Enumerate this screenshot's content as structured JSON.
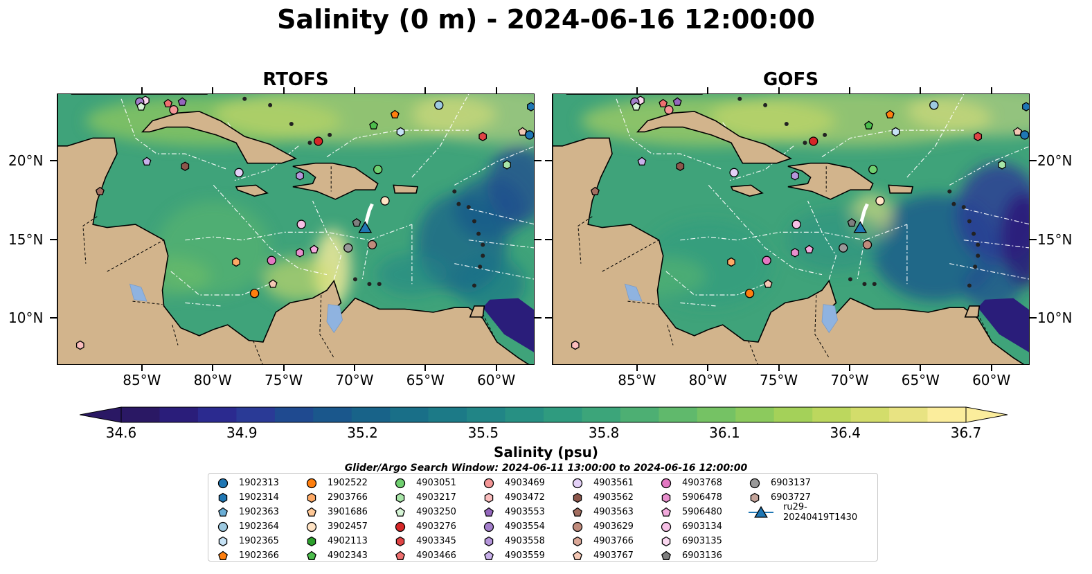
{
  "title": "Salinity (0 m) - 2024-06-16 12:00:00",
  "panels": [
    {
      "title": "RTOFS"
    },
    {
      "title": "GOFS"
    }
  ],
  "map": {
    "lon_range": [
      -91,
      -57.3
    ],
    "lat_range": [
      7.0,
      24.3
    ],
    "lon_ticks": [
      {
        "value": -85,
        "label": "85°W"
      },
      {
        "value": -80,
        "label": "80°W"
      },
      {
        "value": -75,
        "label": "75°W"
      },
      {
        "value": -70,
        "label": "70°W"
      },
      {
        "value": -65,
        "label": "65°W"
      },
      {
        "value": -60,
        "label": "60°W"
      }
    ],
    "lat_ticks": [
      {
        "value": 20,
        "label": "20°N"
      },
      {
        "value": 15,
        "label": "15°N"
      },
      {
        "value": 10,
        "label": "10°N"
      }
    ],
    "colors": {
      "land": "#d2b48c",
      "ocean_base": "#3fa37a",
      "bathy_lines": "#ffffff",
      "lakes": "#8fb3e0"
    }
  },
  "colorbar": {
    "label": "Salinity (psu)",
    "ticks": [
      "34.6",
      "34.9",
      "35.2",
      "35.5",
      "35.8",
      "36.1",
      "36.4",
      "36.7"
    ],
    "range": [
      34.6,
      36.7
    ],
    "colormap": "haline",
    "extend": "both",
    "colors": [
      "#2a1864",
      "#2a1d7a",
      "#2b2a8f",
      "#2a3a96",
      "#1f4a90",
      "#1a578c",
      "#186389",
      "#196f88",
      "#1c7a87",
      "#218586",
      "#279083",
      "#2f9b7f",
      "#3ca57a",
      "#4daf73",
      "#60b96c",
      "#75c264",
      "#8cca5d",
      "#a4d159",
      "#bcd75e",
      "#d3dd6b",
      "#e8e382",
      "#fbed9c"
    ]
  },
  "search_window": "Glider/Argo Search Window: 2024-06-11 13:00:00 to 2024-06-16 12:00:00",
  "legend": [
    {
      "label": "1902313",
      "marker": "circle",
      "color": "#1f77b4"
    },
    {
      "label": "1902314",
      "marker": "hexagon",
      "color": "#1f77b4"
    },
    {
      "label": "1902363",
      "marker": "pentagon",
      "color": "#6aaed6"
    },
    {
      "label": "1902364",
      "marker": "circle",
      "color": "#9ecae1"
    },
    {
      "label": "1902365",
      "marker": "hexagon",
      "color": "#c6e2f5"
    },
    {
      "label": "1902366",
      "marker": "pentagon",
      "color": "#ff7f0e"
    },
    {
      "label": "1902522",
      "marker": "circle",
      "color": "#ff7f0e"
    },
    {
      "label": "2903766",
      "marker": "hexagon",
      "color": "#ffaa66"
    },
    {
      "label": "3901686",
      "marker": "pentagon",
      "color": "#ffc896"
    },
    {
      "label": "3902457",
      "marker": "circle",
      "color": "#ffe3c4"
    },
    {
      "label": "4902113",
      "marker": "hexagon",
      "color": "#2ca02c"
    },
    {
      "label": "4902343",
      "marker": "pentagon",
      "color": "#4cbd4c"
    },
    {
      "label": "4903051",
      "marker": "circle",
      "color": "#6fcf6f"
    },
    {
      "label": "4903217",
      "marker": "hexagon",
      "color": "#a8e6a8"
    },
    {
      "label": "4903250",
      "marker": "pentagon",
      "color": "#d6f5d6"
    },
    {
      "label": "4903276",
      "marker": "circle",
      "color": "#d62728"
    },
    {
      "label": "4903345",
      "marker": "hexagon",
      "color": "#e04445"
    },
    {
      "label": "4903466",
      "marker": "pentagon",
      "color": "#ee6f6f"
    },
    {
      "label": "4903469",
      "marker": "circle",
      "color": "#f49696"
    },
    {
      "label": "4903472",
      "marker": "hexagon",
      "color": "#fbbdbd"
    },
    {
      "label": "4903553",
      "marker": "pentagon",
      "color": "#9467bd"
    },
    {
      "label": "4903554",
      "marker": "circle",
      "color": "#a47fcc"
    },
    {
      "label": "4903558",
      "marker": "hexagon",
      "color": "#b596db"
    },
    {
      "label": "4903559",
      "marker": "pentagon",
      "color": "#c8b0ea"
    },
    {
      "label": "4903561",
      "marker": "circle",
      "color": "#e3d0f7"
    },
    {
      "label": "4903562",
      "marker": "hexagon",
      "color": "#8c564b"
    },
    {
      "label": "4903563",
      "marker": "pentagon",
      "color": "#a36e60"
    },
    {
      "label": "4903629",
      "marker": "circle",
      "color": "#c08b7c"
    },
    {
      "label": "4903766",
      "marker": "hexagon",
      "color": "#dba898"
    },
    {
      "label": "4903767",
      "marker": "pentagon",
      "color": "#f4c7b4"
    },
    {
      "label": "4903768",
      "marker": "circle",
      "color": "#e377c2"
    },
    {
      "label": "5906478",
      "marker": "hexagon",
      "color": "#e88fcd"
    },
    {
      "label": "5906480",
      "marker": "pentagon",
      "color": "#f2a9dc"
    },
    {
      "label": "6903134",
      "marker": "circle",
      "color": "#f7c0e6"
    },
    {
      "label": "6903135",
      "marker": "hexagon",
      "color": "#fbd8f0"
    },
    {
      "label": "6903136",
      "marker": "pentagon",
      "color": "#7f7f7f"
    },
    {
      "label": "6903137",
      "marker": "circle",
      "color": "#999999"
    },
    {
      "label": "6903727",
      "marker": "hexagon",
      "color": "#c4a49a"
    },
    {
      "label": "ru29-20240419T1430",
      "marker": "triangle-line",
      "color": "#1f77b4"
    }
  ],
  "observations": [
    {
      "id": "6903135",
      "lon": -84.8,
      "lat": 23.9
    },
    {
      "id": "4903554",
      "lon": -85.2,
      "lat": 23.8
    },
    {
      "id": "4903250",
      "lon": -85.1,
      "lat": 23.5
    },
    {
      "id": "4903466",
      "lon": -83.2,
      "lat": 23.7
    },
    {
      "id": "4903553",
      "lon": -82.2,
      "lat": 23.8
    },
    {
      "id": "4903469",
      "lon": -82.8,
      "lat": 23.3
    },
    {
      "id": "1902366",
      "lon": -67.2,
      "lat": 23.0
    },
    {
      "id": "1902364",
      "lon": -64.1,
      "lat": 23.6
    },
    {
      "id": "1902314",
      "lon": -57.6,
      "lat": 23.5
    },
    {
      "id": "4902343",
      "lon": -68.7,
      "lat": 22.3
    },
    {
      "id": "1902365",
      "lon": -66.8,
      "lat": 21.9
    },
    {
      "id": "4903345",
      "lon": -61.0,
      "lat": 21.6
    },
    {
      "id": "4903767",
      "lon": -58.2,
      "lat": 21.9
    },
    {
      "id": "1902313",
      "lon": -57.7,
      "lat": 21.7
    },
    {
      "id": "4903276",
      "lon": -72.6,
      "lat": 21.3
    },
    {
      "id": "4903559",
      "lon": -84.7,
      "lat": 20.0
    },
    {
      "id": "4903562",
      "lon": -82.0,
      "lat": 19.7
    },
    {
      "id": "4903561",
      "lon": -78.2,
      "lat": 19.3
    },
    {
      "id": "4903558",
      "lon": -73.9,
      "lat": 19.1
    },
    {
      "id": "4903051",
      "lon": -68.4,
      "lat": 19.5
    },
    {
      "id": "4903217",
      "lon": -59.3,
      "lat": 19.8
    },
    {
      "id": "4903563",
      "lon": -88.0,
      "lat": 18.1
    },
    {
      "id": "3902457",
      "lon": -67.9,
      "lat": 17.5
    },
    {
      "id": "6903134",
      "lon": -73.8,
      "lat": 16.0
    },
    {
      "id": "6903136",
      "lon": -69.9,
      "lat": 16.1
    },
    {
      "id": "ru29-20240419T1430",
      "lon": -69.3,
      "lat": 15.8
    },
    {
      "id": "6903137",
      "lon": -70.5,
      "lat": 14.5
    },
    {
      "id": "4903629",
      "lon": -68.8,
      "lat": 14.7
    },
    {
      "id": "5906480",
      "lon": -72.9,
      "lat": 14.4
    },
    {
      "id": "5906478",
      "lon": -73.9,
      "lat": 14.2
    },
    {
      "id": "4903768",
      "lon": -75.9,
      "lat": 13.7
    },
    {
      "id": "2903766",
      "lon": -78.4,
      "lat": 13.6
    },
    {
      "id": "4903767b",
      "lon": -75.8,
      "lat": 12.2
    },
    {
      "id": "1902522",
      "lon": -77.1,
      "lat": 11.6
    },
    {
      "id": "4903472",
      "lon": -89.4,
      "lat": 8.3
    }
  ]
}
